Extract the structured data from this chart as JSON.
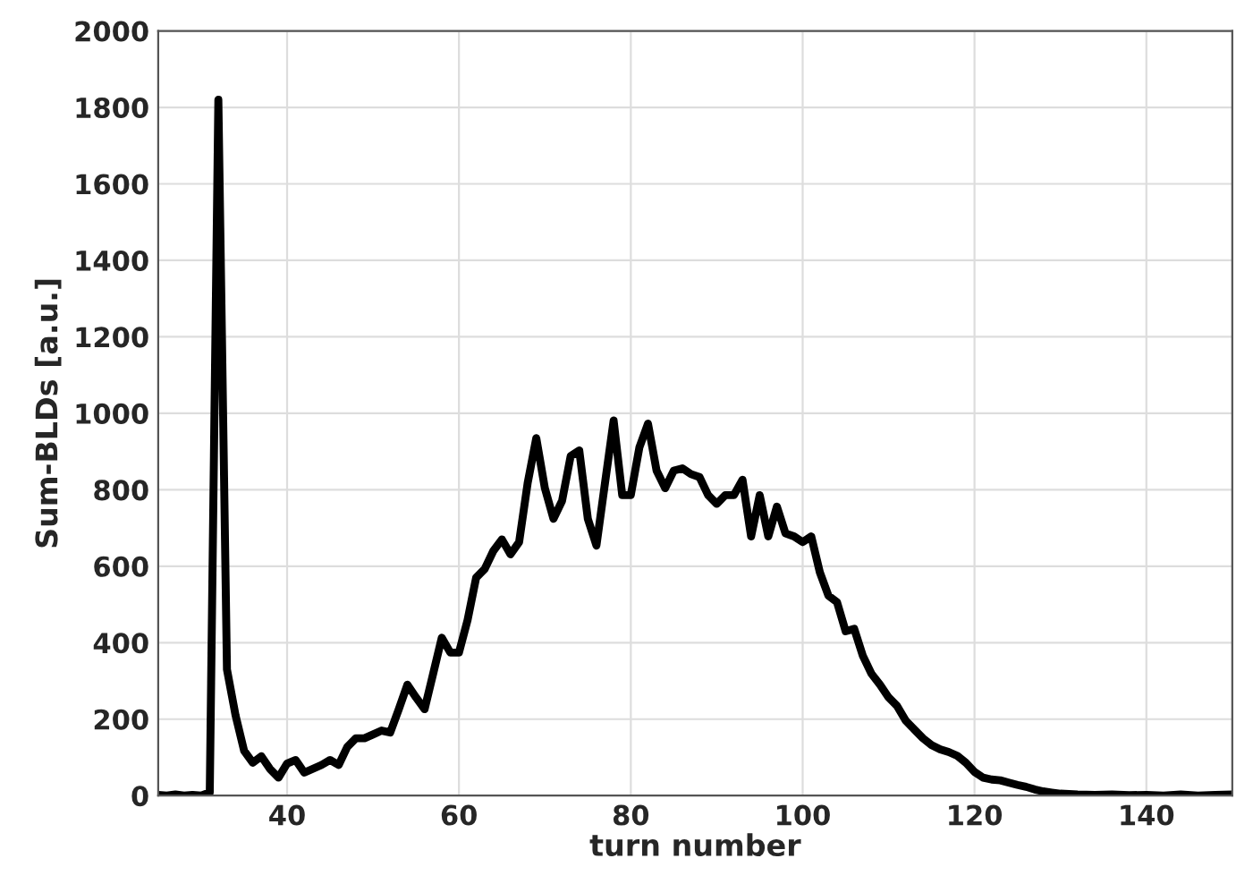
{
  "chart_data": {
    "type": "line",
    "xlabel": "turn number",
    "ylabel": "Sum-BLDs [a.u.]",
    "x": [
      25,
      26,
      27,
      28,
      29,
      30,
      31,
      32,
      33,
      34,
      35,
      36,
      37,
      38,
      39,
      40,
      41,
      42,
      43,
      44,
      45,
      46,
      47,
      48,
      49,
      50,
      51,
      52,
      53,
      54,
      55,
      56,
      57,
      58,
      59,
      60,
      61,
      62,
      63,
      64,
      65,
      66,
      67,
      68,
      69,
      70,
      71,
      72,
      73,
      74,
      75,
      76,
      77,
      78,
      79,
      80,
      81,
      82,
      83,
      84,
      85,
      86,
      87,
      88,
      89,
      90,
      91,
      92,
      93,
      94,
      95,
      96,
      97,
      98,
      99,
      100,
      101,
      102,
      103,
      104,
      105,
      106,
      107,
      108,
      109,
      110,
      111,
      112,
      113,
      114,
      115,
      116,
      117,
      118,
      119,
      120,
      121,
      122,
      123,
      124,
      125,
      126,
      127,
      128,
      129,
      130,
      132,
      134,
      136,
      138,
      140,
      142,
      144,
      146,
      148,
      150
    ],
    "series": [
      {
        "color": "#000000",
        "values": [
          2,
          0,
          3,
          0,
          2,
          0,
          8,
          1820,
          330,
          210,
          117,
          86,
          103,
          70,
          47,
          84,
          93,
          60,
          70,
          80,
          93,
          80,
          127,
          150,
          150,
          160,
          170,
          165,
          226,
          290,
          257,
          226,
          319,
          413,
          374,
          374,
          459,
          570,
          593,
          640,
          670,
          631,
          663,
          818,
          935,
          804,
          724,
          771,
          888,
          903,
          724,
          654,
          818,
          981,
          786,
          786,
          911,
          973,
          850,
          804,
          850,
          856,
          841,
          833,
          786,
          763,
          786,
          786,
          826,
          678,
          786,
          678,
          756,
          686,
          678,
          663,
          678,
          584,
          523,
          506,
          430,
          436,
          366,
          319,
          290,
          257,
          234,
          196,
          173,
          150,
          132,
          121,
          114,
          104,
          86,
          62,
          47,
          42,
          40,
          34,
          28,
          23,
          16,
          11,
          8,
          5,
          3,
          2,
          3,
          1,
          2,
          0,
          3,
          0,
          2,
          3
        ]
      }
    ],
    "xlim": [
      25,
      150
    ],
    "ylim": [
      0,
      2000
    ],
    "xticks": [
      40,
      60,
      80,
      100,
      120,
      140
    ],
    "yticks": [
      0,
      200,
      400,
      600,
      800,
      1000,
      1200,
      1400,
      1600,
      1800,
      2000
    ],
    "grid": true
  }
}
